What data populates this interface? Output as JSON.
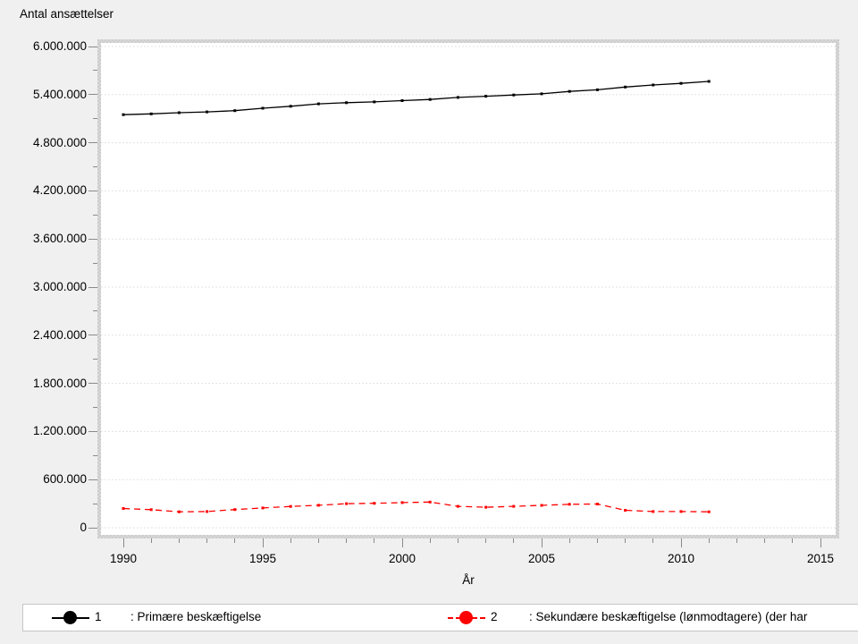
{
  "title": "Antal ansættelser",
  "chart_data": {
    "type": "line",
    "title": "Antal ansættelser",
    "xlabel": "År",
    "ylabel": "Antal ansættelser",
    "grid": "horizontal-major-dotted",
    "legend_position": "bottom",
    "x": [
      1990,
      1991,
      1992,
      1993,
      1994,
      1995,
      1996,
      1997,
      1998,
      1999,
      2000,
      2001,
      2002,
      2003,
      2004,
      2005,
      2006,
      2007,
      2008,
      2009,
      2010,
      2011
    ],
    "series": [
      {
        "name": "1 : Primære beskæftigelse",
        "color": "#000000",
        "style": "solid",
        "values": [
          5150000,
          5160000,
          5175000,
          5185000,
          5200000,
          5230000,
          5255000,
          5285000,
          5300000,
          5310000,
          5325000,
          5340000,
          5365000,
          5380000,
          5395000,
          5410000,
          5440000,
          5460000,
          5495000,
          5520000,
          5540000,
          5565000
        ]
      },
      {
        "name": "2 : Sekundære beskæftigelse (lønmodtagere) (der har",
        "color": "#ff0000",
        "style": "dashed",
        "values": [
          240000,
          225000,
          198000,
          202000,
          226000,
          247000,
          265000,
          280000,
          300000,
          305000,
          313000,
          320000,
          266000,
          255000,
          266000,
          279000,
          292000,
          296000,
          217000,
          202000,
          202000,
          198000
        ]
      }
    ],
    "y_axis": {
      "min": 0,
      "max": 6000000,
      "major_step": 600000,
      "minor_step": 300000,
      "labels": [
        "0",
        "600.000",
        "1.200.000",
        "1.800.000",
        "2.400.000",
        "3.000.000",
        "3.600.000",
        "4.200.000",
        "4.800.000",
        "5.400.000",
        "6.000.000"
      ]
    },
    "x_axis": {
      "min": 1990,
      "max": 2015,
      "major_step": 5,
      "minor_step": 1,
      "labels": [
        "1990",
        "1995",
        "2000",
        "2005",
        "2010",
        "2015"
      ]
    }
  },
  "legend": {
    "items": [
      {
        "number": "1",
        "label": ": Primære beskæftigelse",
        "color": "#000000",
        "style": "solid"
      },
      {
        "number": "2",
        "label": ": Sekundære beskæftigelse (lønmodtagere) (der har",
        "color": "#ff0000",
        "style": "dashed"
      }
    ]
  }
}
